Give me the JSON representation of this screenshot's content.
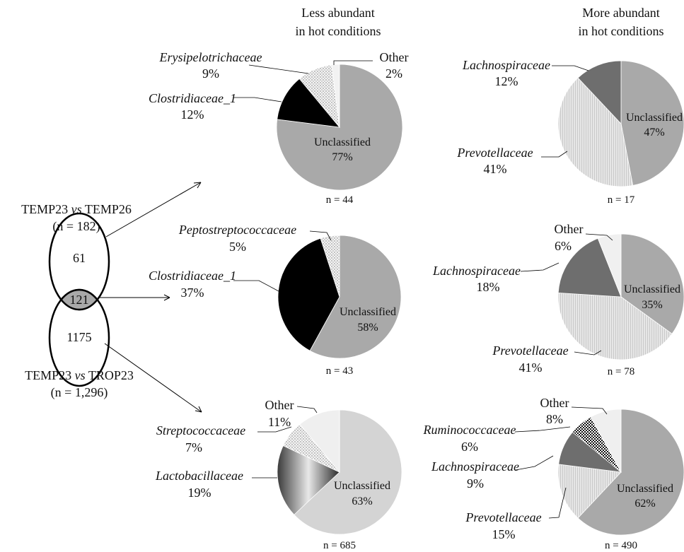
{
  "headers": {
    "less": [
      "Less abundant",
      "in hot conditions"
    ],
    "more": [
      "More abundant",
      "in hot conditions"
    ]
  },
  "venn": {
    "top_title": [
      "TEMP23 vs TEMP26",
      "(n = 182)"
    ],
    "bottom_title": [
      "TEMP23 vs TROP23",
      "(n = 1,296)"
    ],
    "top_only": "61",
    "overlap": "121",
    "bottom_only": "1175"
  },
  "chart_data": [
    {
      "type": "pie",
      "group": "Less abundant in hot conditions",
      "comparison": "TEMP23 vs TEMP26 only",
      "n_label": "n = 44",
      "slices": [
        {
          "name": "Unclassified",
          "value": 77,
          "percent": "77%",
          "color": "#a9a9a9"
        },
        {
          "name": "Clostridiaceae_1",
          "value": 12,
          "percent": "12%",
          "color": "#000000"
        },
        {
          "name": "Erysipelotrichaceae",
          "value": 9,
          "percent": "9%",
          "color": "#e6e6e6"
        },
        {
          "name": "Other",
          "value": 2,
          "percent": "2%",
          "color": "#f2f2f2"
        }
      ]
    },
    {
      "type": "pie",
      "group": "More abundant in hot conditions",
      "comparison": "TEMP23 vs TEMP26 only",
      "n_label": "n = 17",
      "slices": [
        {
          "name": "Unclassified",
          "value": 47,
          "percent": "47%",
          "color": "#a9a9a9"
        },
        {
          "name": "Prevotellaceae",
          "value": 41,
          "percent": "41%",
          "color": "#e4e4e4"
        },
        {
          "name": "Lachnospiraceae",
          "value": 12,
          "percent": "12%",
          "color": "#6e6e6e"
        }
      ]
    },
    {
      "type": "pie",
      "group": "Less abundant in hot conditions",
      "comparison": "Shared",
      "n_label": "n = 43",
      "slices": [
        {
          "name": "Unclassified",
          "value": 58,
          "percent": "58%",
          "color": "#a9a9a9"
        },
        {
          "name": "Clostridiaceae_1",
          "value": 37,
          "percent": "37%",
          "color": "#000000"
        },
        {
          "name": "Peptostreptococcaceae",
          "value": 5,
          "percent": "5%",
          "color": "#e6e6e6"
        }
      ]
    },
    {
      "type": "pie",
      "group": "More abundant in hot conditions",
      "comparison": "Shared",
      "n_label": "n = 78",
      "slices": [
        {
          "name": "Unclassified",
          "value": 35,
          "percent": "35%",
          "color": "#a9a9a9"
        },
        {
          "name": "Prevotellaceae",
          "value": 41,
          "percent": "41%",
          "color": "#e4e4e4"
        },
        {
          "name": "Lachnospiraceae",
          "value": 18,
          "percent": "18%",
          "color": "#6e6e6e"
        },
        {
          "name": "Other",
          "value": 6,
          "percent": "6%",
          "color": "#f0f0f0"
        }
      ]
    },
    {
      "type": "pie",
      "group": "Less abundant in hot conditions",
      "comparison": "TEMP23 vs TROP23 only",
      "n_label": "n = 685",
      "slices": [
        {
          "name": "Unclassified",
          "value": 63,
          "percent": "63%",
          "color": "#d4d4d4"
        },
        {
          "name": "Lactobacillaceae",
          "value": 19,
          "percent": "19%",
          "color": "#808080"
        },
        {
          "name": "Streptococcaceae",
          "value": 7,
          "percent": "7%",
          "color": "#dcdcdc"
        },
        {
          "name": "Other",
          "value": 11,
          "percent": "11%",
          "color": "#efefef"
        }
      ]
    },
    {
      "type": "pie",
      "group": "More abundant in hot conditions",
      "comparison": "TEMP23 vs TROP23 only",
      "n_label": "n = 490",
      "slices": [
        {
          "name": "Unclassified",
          "value": 62,
          "percent": "62%",
          "color": "#a9a9a9"
        },
        {
          "name": "Prevotellaceae",
          "value": 15,
          "percent": "15%",
          "color": "#e4e4e4"
        },
        {
          "name": "Lachnospiraceae",
          "value": 9,
          "percent": "9%",
          "color": "#6e6e6e"
        },
        {
          "name": "Ruminococcaceae",
          "value": 6,
          "percent": "6%",
          "color": "#222222"
        },
        {
          "name": "Other",
          "value": 8,
          "percent": "8%",
          "color": "#efefef"
        }
      ]
    }
  ]
}
